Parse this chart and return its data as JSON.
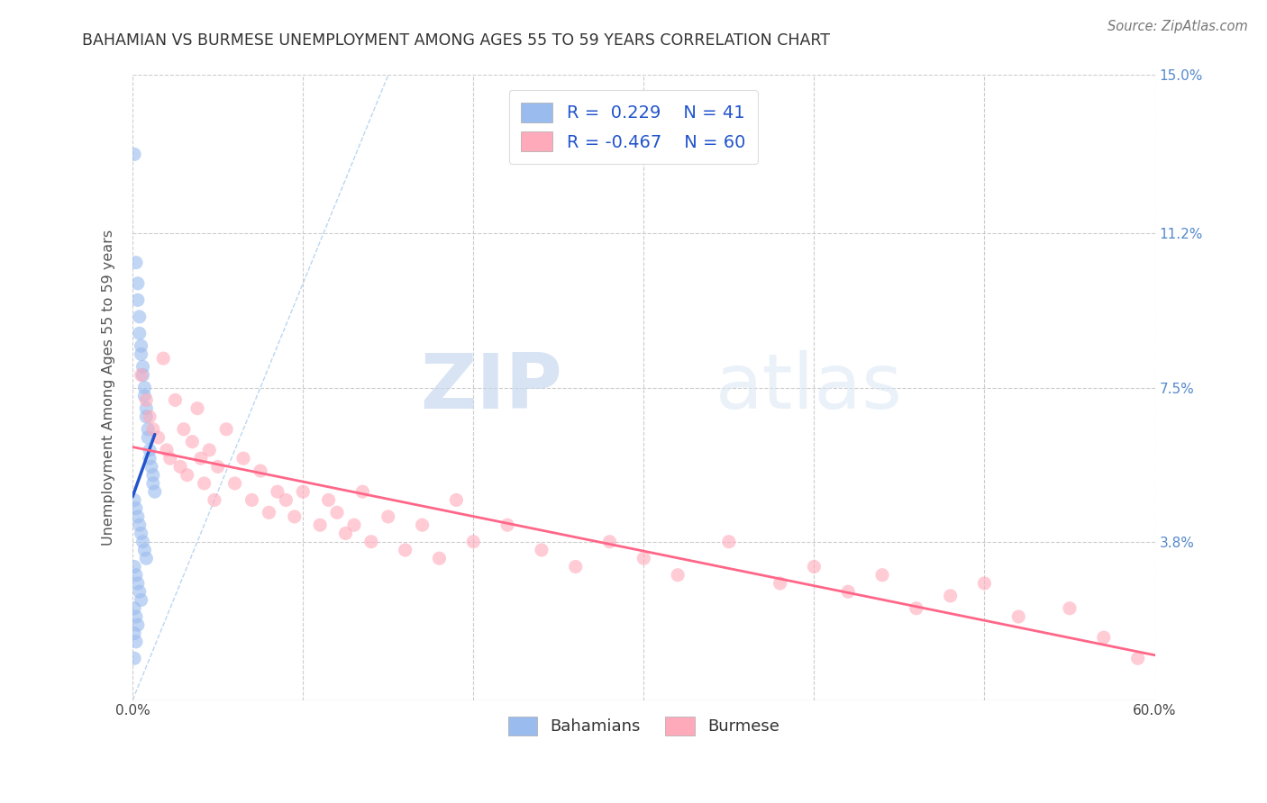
{
  "title": "BAHAMIAN VS BURMESE UNEMPLOYMENT AMONG AGES 55 TO 59 YEARS CORRELATION CHART",
  "source": "Source: ZipAtlas.com",
  "ylabel": "Unemployment Among Ages 55 to 59 years",
  "xmin": 0.0,
  "xmax": 0.6,
  "ymin": 0.0,
  "ymax": 0.15,
  "yticks": [
    0.0,
    0.038,
    0.075,
    0.112,
    0.15
  ],
  "ytick_labels": [
    "",
    "3.8%",
    "7.5%",
    "11.2%",
    "15.0%"
  ],
  "xticks": [
    0.0,
    0.1,
    0.2,
    0.3,
    0.4,
    0.5,
    0.6
  ],
  "xtick_labels": [
    "0.0%",
    "",
    "",
    "",
    "",
    "",
    "60.0%"
  ],
  "bahamian_color": "#99bbee",
  "burmese_color": "#ffaabb",
  "bahamian_R": 0.229,
  "bahamian_N": 41,
  "burmese_R": -0.467,
  "burmese_N": 60,
  "watermark_zip": "ZIP",
  "watermark_atlas": "atlas",
  "bahamian_x": [
    0.001,
    0.002,
    0.003,
    0.003,
    0.004,
    0.004,
    0.005,
    0.005,
    0.006,
    0.006,
    0.007,
    0.007,
    0.008,
    0.008,
    0.009,
    0.009,
    0.01,
    0.01,
    0.011,
    0.012,
    0.012,
    0.013,
    0.001,
    0.002,
    0.003,
    0.004,
    0.005,
    0.006,
    0.007,
    0.008,
    0.001,
    0.002,
    0.003,
    0.004,
    0.005,
    0.001,
    0.002,
    0.003,
    0.001,
    0.002,
    0.001
  ],
  "bahamian_y": [
    0.131,
    0.105,
    0.1,
    0.096,
    0.092,
    0.088,
    0.085,
    0.083,
    0.08,
    0.078,
    0.075,
    0.073,
    0.07,
    0.068,
    0.065,
    0.063,
    0.06,
    0.058,
    0.056,
    0.054,
    0.052,
    0.05,
    0.048,
    0.046,
    0.044,
    0.042,
    0.04,
    0.038,
    0.036,
    0.034,
    0.032,
    0.03,
    0.028,
    0.026,
    0.024,
    0.022,
    0.02,
    0.018,
    0.016,
    0.014,
    0.01
  ],
  "burmese_x": [
    0.005,
    0.008,
    0.01,
    0.012,
    0.015,
    0.018,
    0.02,
    0.022,
    0.025,
    0.028,
    0.03,
    0.032,
    0.035,
    0.038,
    0.04,
    0.042,
    0.045,
    0.048,
    0.05,
    0.055,
    0.06,
    0.065,
    0.07,
    0.075,
    0.08,
    0.085,
    0.09,
    0.095,
    0.1,
    0.11,
    0.115,
    0.12,
    0.125,
    0.13,
    0.135,
    0.14,
    0.15,
    0.16,
    0.17,
    0.18,
    0.19,
    0.2,
    0.22,
    0.24,
    0.26,
    0.28,
    0.3,
    0.32,
    0.35,
    0.38,
    0.4,
    0.42,
    0.44,
    0.46,
    0.48,
    0.5,
    0.52,
    0.55,
    0.57,
    0.59
  ],
  "burmese_y": [
    0.078,
    0.072,
    0.068,
    0.065,
    0.063,
    0.082,
    0.06,
    0.058,
    0.072,
    0.056,
    0.065,
    0.054,
    0.062,
    0.07,
    0.058,
    0.052,
    0.06,
    0.048,
    0.056,
    0.065,
    0.052,
    0.058,
    0.048,
    0.055,
    0.045,
    0.05,
    0.048,
    0.044,
    0.05,
    0.042,
    0.048,
    0.045,
    0.04,
    0.042,
    0.05,
    0.038,
    0.044,
    0.036,
    0.042,
    0.034,
    0.048,
    0.038,
    0.042,
    0.036,
    0.032,
    0.038,
    0.034,
    0.03,
    0.038,
    0.028,
    0.032,
    0.026,
    0.03,
    0.022,
    0.025,
    0.028,
    0.02,
    0.022,
    0.015,
    0.01
  ]
}
